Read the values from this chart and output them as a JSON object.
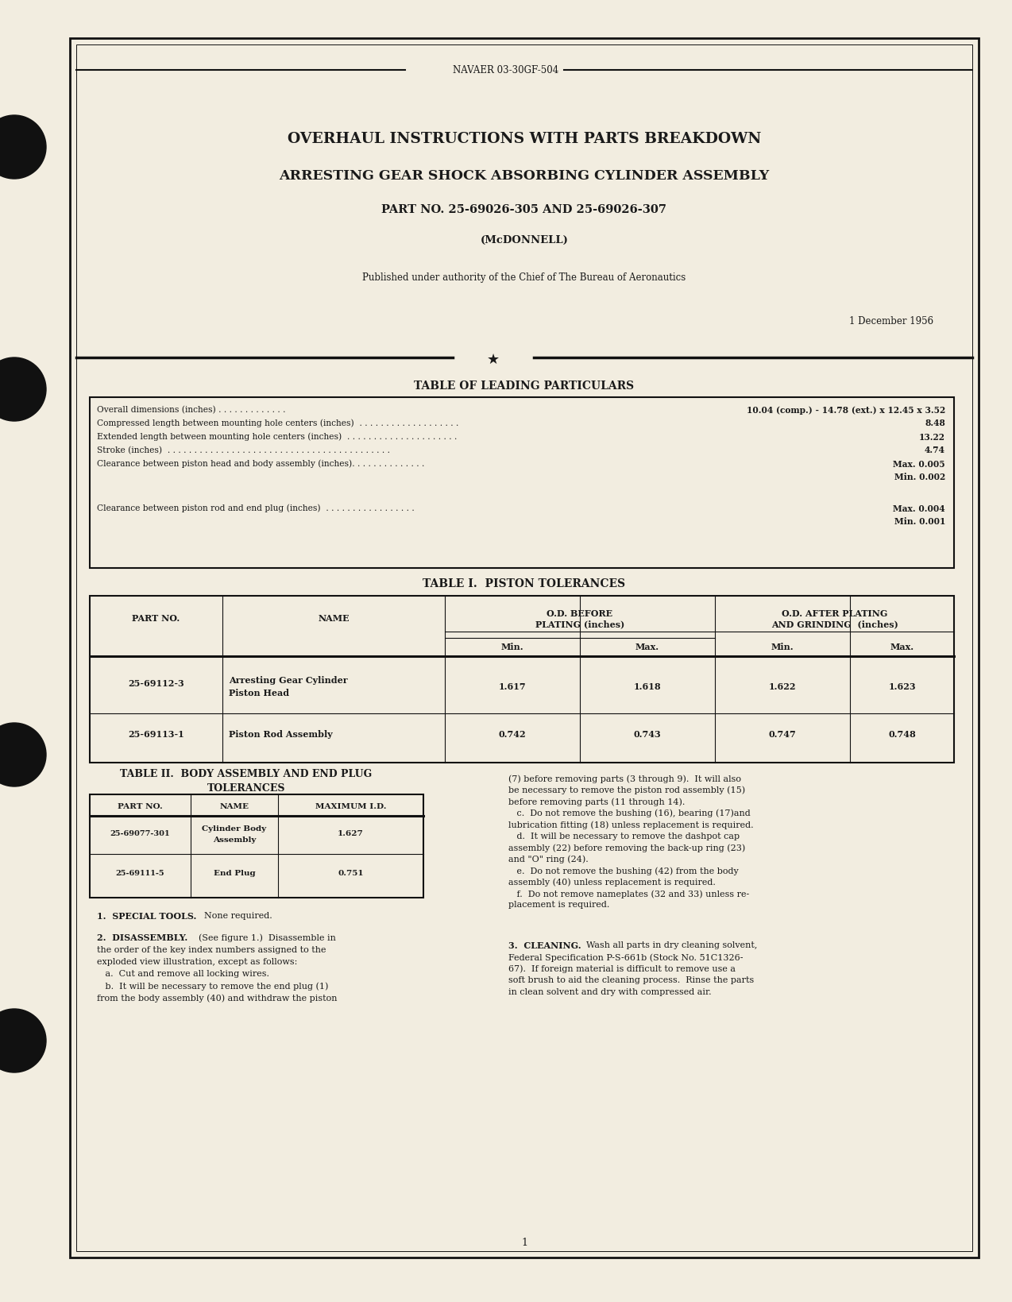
{
  "bg_color": "#f2ede0",
  "page_bg": "#f2ede0",
  "text_color": "#1a1a1a",
  "header_doc_num": "NAVAER 03-30GF-504",
  "title1": "OVERHAUL INSTRUCTIONS WITH PARTS BREAKDOWN",
  "title2": "ARRESTING GEAR SHOCK ABSORBING CYLINDER ASSEMBLY",
  "part_no_line": "PART NO. 25-69026-305 AND 25-69026-307",
  "mfg": "(McDONNELL)",
  "authority": "Published under authority of the Chief of The Bureau of Aeronautics",
  "date": "1 December 1956",
  "table_leading_title": "TABLE OF LEADING PARTICULARS",
  "table1_title": "TABLE I.  PISTON TOLERANCES",
  "table2_title_line1": "TABLE II.  BODY ASSEMBLY AND END PLUG",
  "table2_title_line2": "TOLERANCES",
  "page_num": "1",
  "figw": 12.74,
  "figh": 16.39,
  "dpi": 100
}
